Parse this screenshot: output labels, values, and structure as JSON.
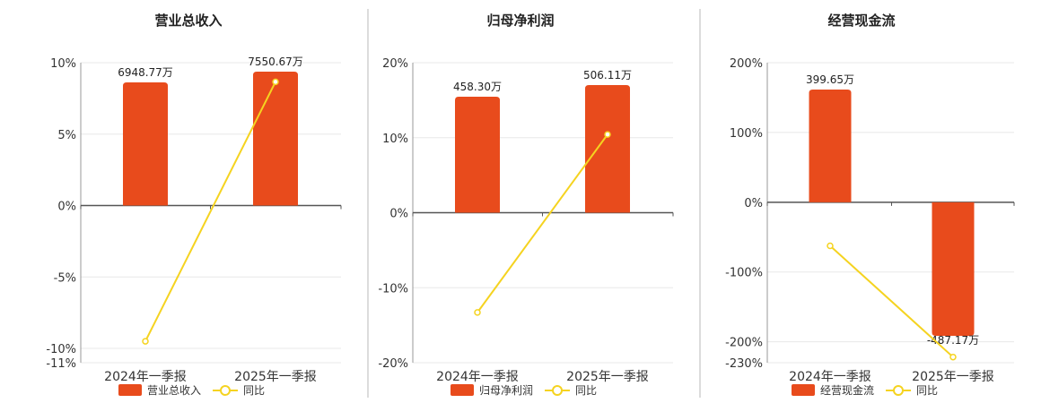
{
  "chart_data": [
    {
      "type": "bar",
      "title": "营业总收入",
      "categories": [
        "2024年一季报",
        "2025年一季报"
      ],
      "bar_labels": [
        "6948.77万",
        "7550.67万"
      ],
      "bar_values": [
        6948.77,
        7550.67
      ],
      "yoy": [
        -9.5,
        8.66
      ],
      "y_ticks": [
        "10%",
        "5%",
        "0%",
        "-5%",
        "-10%",
        "-11%"
      ],
      "y_tick_values": [
        10,
        5,
        0,
        -5,
        -10,
        -11
      ],
      "ylim": [
        -11,
        10
      ],
      "legend": [
        "营业总收入",
        "同比"
      ],
      "bar_color": "#e84b1c",
      "line_color": "#f5d320"
    },
    {
      "type": "bar",
      "title": "归母净利润",
      "categories": [
        "2024年一季报",
        "2025年一季报"
      ],
      "bar_labels": [
        "458.30万",
        "506.11万"
      ],
      "bar_values": [
        458.3,
        506.11
      ],
      "yoy": [
        -13.3,
        10.43
      ],
      "y_ticks": [
        "20%",
        "10%",
        "0%",
        "-10%",
        "-20%"
      ],
      "y_tick_values": [
        20,
        10,
        0,
        -10,
        -20
      ],
      "ylim": [
        -20,
        20
      ],
      "legend": [
        "归母净利润",
        "同比"
      ],
      "bar_color": "#e84b1c",
      "line_color": "#f5d320"
    },
    {
      "type": "bar",
      "title": "经营现金流",
      "categories": [
        "2024年一季报",
        "2025年一季报"
      ],
      "bar_labels": [
        "399.65万",
        "-487.17万"
      ],
      "bar_values": [
        399.65,
        -487.17
      ],
      "yoy": [
        -62.5,
        -221.9
      ],
      "y_ticks": [
        "200%",
        "100%",
        "0%",
        "-100%",
        "-200%",
        "-230%"
      ],
      "y_tick_values": [
        200,
        100,
        0,
        -100,
        -200,
        -230
      ],
      "ylim": [
        -230,
        200
      ],
      "legend": [
        "经营现金流",
        "同比"
      ],
      "bar_color": "#e84b1c",
      "line_color": "#f5d320"
    }
  ]
}
